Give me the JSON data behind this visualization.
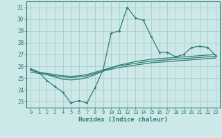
{
  "xlabel": "Humidex (Indice chaleur)",
  "bg_color": "#cce8e8",
  "grid_color": "#aacccc",
  "line_color": "#2e7d72",
  "xlim": [
    -0.5,
    23.5
  ],
  "ylim": [
    22.5,
    31.5
  ],
  "yticks": [
    23,
    24,
    25,
    26,
    27,
    28,
    29,
    30,
    31
  ],
  "xticks": [
    0,
    1,
    2,
    3,
    4,
    5,
    6,
    7,
    8,
    9,
    10,
    11,
    12,
    13,
    14,
    15,
    16,
    17,
    18,
    19,
    20,
    21,
    22,
    23
  ],
  "curve1": [
    25.8,
    25.5,
    24.8,
    24.3,
    23.8,
    22.9,
    23.1,
    22.9,
    24.2,
    25.7,
    28.8,
    29.0,
    31.0,
    30.1,
    29.9,
    28.5,
    27.2,
    27.2,
    26.8,
    27.0,
    27.6,
    27.7,
    27.6,
    26.9
  ],
  "curve2": [
    25.8,
    25.5,
    25.3,
    25.1,
    24.9,
    24.85,
    24.9,
    25.05,
    25.3,
    25.6,
    25.85,
    26.1,
    26.25,
    26.4,
    26.5,
    26.6,
    26.65,
    26.7,
    26.75,
    26.8,
    26.85,
    26.9,
    26.95,
    27.0
  ],
  "curve3": [
    25.65,
    25.5,
    25.4,
    25.3,
    25.2,
    25.15,
    25.2,
    25.3,
    25.5,
    25.7,
    25.9,
    26.05,
    26.15,
    26.25,
    26.35,
    26.45,
    26.5,
    26.55,
    26.6,
    26.65,
    26.7,
    26.75,
    26.8,
    26.85
  ],
  "curve4": [
    25.5,
    25.4,
    25.3,
    25.2,
    25.1,
    25.05,
    25.1,
    25.2,
    25.4,
    25.6,
    25.75,
    25.9,
    26.0,
    26.1,
    26.2,
    26.3,
    26.35,
    26.4,
    26.45,
    26.5,
    26.55,
    26.6,
    26.65,
    26.7
  ]
}
